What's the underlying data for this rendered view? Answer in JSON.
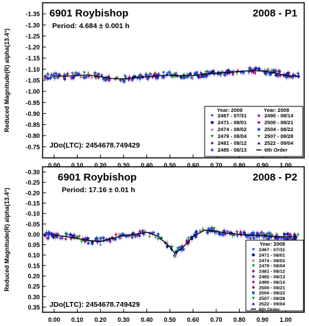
{
  "chart_data": [
    {
      "type": "scatter",
      "title": "6901 Roybishop",
      "session": "2008 - P1",
      "period_text": "Period: 4.684 ± 0.001 h",
      "jd_text": "JDo(LTC): 2454678.749429",
      "ylabel": "Reduced Magnitude(R) alpha(13.4°)",
      "ylim": [
        -1.4,
        -0.7
      ],
      "y_inverted": true,
      "xlim": [
        -0.05,
        1.08
      ],
      "x_ticks": [
        "0.00",
        "0.10",
        "0.20",
        "0.30",
        "0.40",
        "0.50",
        "0.60",
        "0.70",
        "0.80",
        "0.90",
        "1.00"
      ],
      "y_ticks": [
        "-1.35",
        "-1.30",
        "-1.25",
        "-1.20",
        "-1.15",
        "-1.10",
        "-1.05",
        "-1.00",
        "-0.95",
        "-0.90",
        "-0.85",
        "-0.80",
        "-0.75"
      ],
      "legend_title": "Year: 2008",
      "legend_placement": "bottom-right",
      "legend_col1": [
        {
          "label": "2467 - 07/31",
          "color": "#1f4fd6",
          "marker": "tri-down"
        },
        {
          "label": "2471 - 08/01",
          "color": "#1a1aa0",
          "marker": "asterisk"
        },
        {
          "label": "2474 - 08/02",
          "color": "#8a8a8a",
          "marker": "tri-up"
        },
        {
          "label": "2479 - 08/04",
          "color": "#1e8a3a",
          "marker": "tri-down"
        },
        {
          "label": "2481 - 08/12",
          "color": "#7a1f7a",
          "marker": "diamond"
        },
        {
          "label": "2485 - 08/13",
          "color": "#2a2ad8",
          "marker": "plus"
        }
      ],
      "legend_col2": [
        {
          "label": "2490 - 08/14",
          "color": "#b01a8a",
          "marker": "diamond"
        },
        {
          "label": "2500 - 08/21",
          "color": "#7a1f7a",
          "marker": "diamond"
        },
        {
          "label": "2504 - 08/22",
          "color": "#1f4fd6",
          "marker": "square"
        },
        {
          "label": "2507 - 08/28",
          "color": "#1e8a3a",
          "marker": "tri-down"
        },
        {
          "label": "2522 - 09/04",
          "color": "#1a1aa0",
          "marker": "tri-up"
        },
        {
          "label": "6th Order",
          "color": "#000000",
          "marker": "line"
        }
      ],
      "fit": {
        "x": [
          0.0,
          0.05,
          0.1,
          0.15,
          0.2,
          0.25,
          0.3,
          0.35,
          0.4,
          0.45,
          0.5,
          0.55,
          0.6,
          0.65,
          0.7,
          0.75,
          0.8,
          0.85,
          0.9,
          0.95,
          1.0,
          1.05
        ],
        "y": [
          -1.07,
          -1.068,
          -1.072,
          -1.074,
          -1.066,
          -1.058,
          -1.056,
          -1.062,
          -1.066,
          -1.07,
          -1.074,
          -1.07,
          -1.072,
          -1.078,
          -1.082,
          -1.086,
          -1.09,
          -1.094,
          -1.092,
          -1.084,
          -1.072,
          -1.068
        ]
      }
    },
    {
      "type": "scatter",
      "title": "6901 Roybishop",
      "session": "2008 - P2",
      "period_text": "Period: 17.16 ± 0.01 h",
      "jd_text": "JDo(LTC): 2454678.749429",
      "ylabel": "Reduced Magnitude(R) alpha(13.4°)",
      "ylim": [
        -0.325,
        0.375
      ],
      "y_inverted": true,
      "xlim": [
        -0.05,
        1.08
      ],
      "x_ticks": [
        "0.00",
        "0.10",
        "0.20",
        "0.30",
        "0.40",
        "0.50",
        "0.60",
        "0.70",
        "0.80",
        "0.90",
        "1.00"
      ],
      "y_ticks": [
        "-0.30",
        "-0.25",
        "-0.20",
        "-0.15",
        "-0.10",
        "-0.05",
        "0.00",
        "0.05",
        "0.10",
        "0.15",
        "0.20",
        "0.25",
        "0.30",
        "0.35"
      ],
      "legend_title": "Year: 2008",
      "legend_placement": "right",
      "legend_col1": [
        {
          "label": "2467 - 07/31",
          "color": "#1f4fd6",
          "marker": "tri-down"
        },
        {
          "label": "2471 - 08/01",
          "color": "#1a1aa0",
          "marker": "asterisk"
        },
        {
          "label": "2474 - 08/02",
          "color": "#8a8a8a",
          "marker": "tri-up"
        },
        {
          "label": "2479 - 08/04",
          "color": "#1e8a3a",
          "marker": "tri-down"
        },
        {
          "label": "2481 - 08/12",
          "color": "#7a1f7a",
          "marker": "diamond"
        },
        {
          "label": "2485 - 08/13",
          "color": "#2a2ad8",
          "marker": "plus"
        },
        {
          "label": "2490 - 08/14",
          "color": "#b01a8a",
          "marker": "diamond"
        },
        {
          "label": "2500 - 08/21",
          "color": "#7a1f7a",
          "marker": "diamond"
        },
        {
          "label": "2504 - 08/22",
          "color": "#1f4fd6",
          "marker": "square"
        },
        {
          "label": "2507 - 08/28",
          "color": "#1e8a3a",
          "marker": "tri-down"
        },
        {
          "label": "2522 - 09/04",
          "color": "#1a1aa0",
          "marker": "tri-up"
        },
        {
          "label": "6th Order",
          "color": "#000000",
          "marker": "line"
        }
      ],
      "legend_col2": [],
      "fit": {
        "x": [
          0.0,
          0.05,
          0.1,
          0.15,
          0.2,
          0.25,
          0.3,
          0.35,
          0.4,
          0.45,
          0.5,
          0.52,
          0.55,
          0.6,
          0.65,
          0.7,
          0.75,
          0.8,
          0.85,
          0.9,
          0.95,
          1.0,
          1.05
        ],
        "y": [
          0.005,
          0.01,
          0.02,
          0.03,
          0.035,
          0.02,
          0.005,
          0.0,
          -0.01,
          0.01,
          0.06,
          0.09,
          0.07,
          0.01,
          -0.02,
          -0.015,
          -0.005,
          0.0,
          0.005,
          0.005,
          0.01,
          0.012,
          0.012
        ]
      }
    }
  ]
}
